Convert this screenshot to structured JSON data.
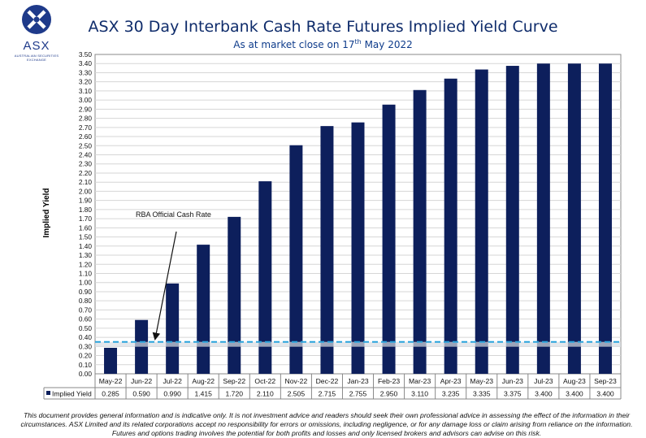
{
  "logo": {
    "text": "ASX",
    "subtext": "AUSTRALIAN SECURITIES EXCHANGE"
  },
  "header": {
    "title": "ASX 30 Day Interbank Cash Rate Futures Implied Yield Curve",
    "subtitle_prefix": "As at market close on 17",
    "subtitle_sup": "th",
    "subtitle_suffix": " May 2022"
  },
  "chart_data": {
    "type": "bar",
    "categories": [
      "May-22",
      "Jun-22",
      "Jul-22",
      "Aug-22",
      "Sep-22",
      "Oct-22",
      "Nov-22",
      "Dec-22",
      "Jan-23",
      "Feb-23",
      "Mar-23",
      "Apr-23",
      "May-23",
      "Jun-23",
      "Jul-23",
      "Aug-23",
      "Sep-23"
    ],
    "series": [
      {
        "name": "Implied Yield",
        "values": [
          0.285,
          0.59,
          0.99,
          1.415,
          1.72,
          2.11,
          2.505,
          2.715,
          2.755,
          2.95,
          3.11,
          3.235,
          3.335,
          3.375,
          3.4,
          3.4,
          3.4
        ],
        "labels": [
          "0.285",
          "0.590",
          "0.990",
          "1.415",
          "1.720",
          "2.110",
          "2.505",
          "2.715",
          "2.755",
          "2.950",
          "3.110",
          "3.235",
          "3.335",
          "3.375",
          "3.400",
          "3.400",
          "3.400"
        ]
      }
    ],
    "ylabel": "Implied Yield",
    "ylim": [
      0,
      3.5
    ],
    "yticks": [
      "0.00",
      "0.10",
      "0.20",
      "0.30",
      "0.40",
      "0.50",
      "0.60",
      "0.70",
      "0.80",
      "0.90",
      "1.00",
      "1.10",
      "1.20",
      "1.30",
      "1.40",
      "1.50",
      "1.60",
      "1.70",
      "1.80",
      "1.90",
      "2.00",
      "2.10",
      "2.20",
      "2.30",
      "2.40",
      "2.50",
      "2.60",
      "2.70",
      "2.80",
      "2.90",
      "3.00",
      "3.10",
      "3.20",
      "3.30",
      "3.40",
      "3.50"
    ],
    "grid": true,
    "reference_line": {
      "value": 0.35,
      "label": "RBA Official Cash Rate",
      "color": "#29a3dc"
    },
    "bar_color": "#0d1f5c",
    "data_table": true
  },
  "disclaimer": "This document provides general information and is indicative only. It is not investment advice and readers should seek their own professional advice in assessing the effect of the information in their circumstances. ASX Limited and its related corporations accept no responsibility for errors or omissions, including negligence, or for any damage loss or claim arising from reliance on the information. Futures and options trading involves the potential for both profits and losses and only licensed brokers and advisors can advise on this risk."
}
